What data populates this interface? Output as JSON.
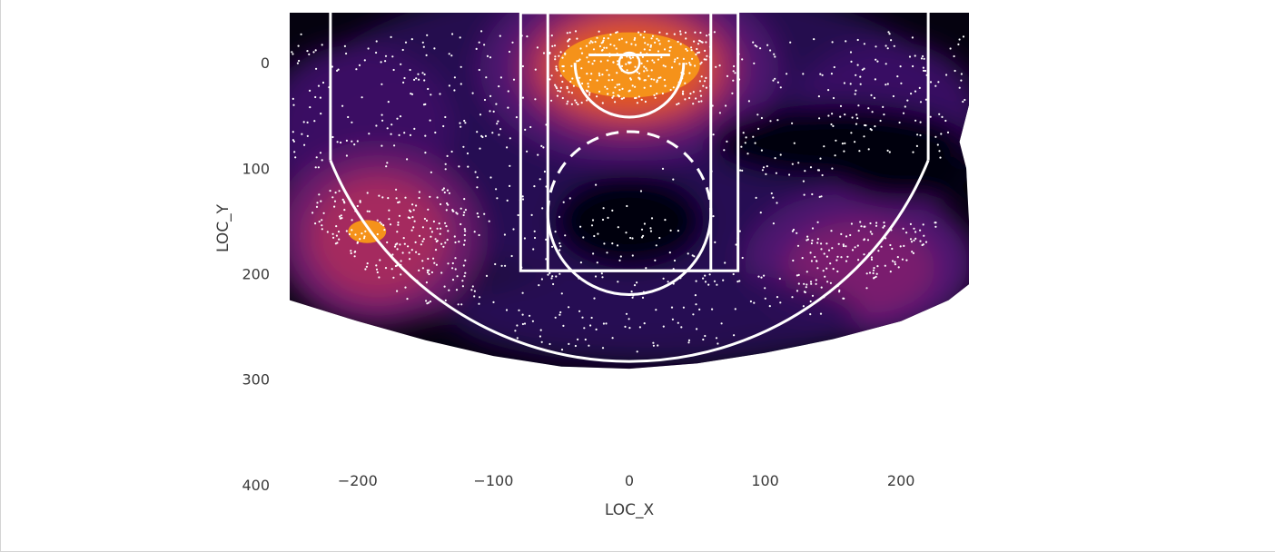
{
  "chart_data": {
    "type": "heatmap",
    "subtype": "kde-density-with-scatter-and-court-overlay",
    "xlabel": "LOC_X",
    "ylabel": "LOC_Y",
    "xlim": [
      -250,
      250
    ],
    "ylim": [
      422.5,
      -47.5
    ],
    "y_inverted": true,
    "xticks": [
      -200,
      -100,
      0,
      100,
      200
    ],
    "xtick_labels": [
      "−200",
      "−100",
      "0",
      "100",
      "200"
    ],
    "yticks": [
      0,
      100,
      200,
      300,
      400
    ],
    "ytick_labels": [
      "0",
      "100",
      "200",
      "300",
      "400"
    ],
    "grid": false,
    "colormap": "inferno",
    "colors": {
      "background": "#ffffff",
      "density_low": "#05020f",
      "density_mid": "#7a1e6e",
      "density_high": "#f5921a",
      "points": "#ffffff",
      "court_lines": "#ffffff"
    },
    "density_hotspots": [
      {
        "x": 0,
        "y": 0,
        "level": "high"
      },
      {
        "x": -190,
        "y": 160,
        "level": "high"
      },
      {
        "x": 170,
        "y": 190,
        "level": "medium"
      },
      {
        "x": -180,
        "y": 30,
        "level": "low"
      },
      {
        "x": 180,
        "y": 30,
        "level": "low"
      }
    ],
    "scatter_regions": [
      {
        "x": [
          -60,
          60
        ],
        "y": [
          -30,
          40
        ],
        "count": 320
      },
      {
        "x": [
          -240,
          -120
        ],
        "y": [
          120,
          230
        ],
        "count": 280
      },
      {
        "x": [
          120,
          230
        ],
        "y": [
          150,
          245
        ],
        "count": 230
      },
      {
        "x": [
          -250,
          -150
        ],
        "y": [
          -30,
          100
        ],
        "count": 110
      },
      {
        "x": [
          -150,
          -60
        ],
        "y": [
          -30,
          120
        ],
        "count": 90
      },
      {
        "x": [
          60,
          150
        ],
        "y": [
          -30,
          110
        ],
        "count": 80
      },
      {
        "x": [
          150,
          250
        ],
        "y": [
          -30,
          90
        ],
        "count": 120
      },
      {
        "x": [
          -120,
          120
        ],
        "y": [
          200,
          275
        ],
        "count": 130
      },
      {
        "x": [
          -80,
          80
        ],
        "y": [
          140,
          210
        ],
        "count": 50
      },
      {
        "x": [
          -150,
          150
        ],
        "y": [
          100,
          200
        ],
        "count": 90
      }
    ],
    "court": {
      "hoop": {
        "x": 0,
        "y": 0,
        "radius": 7.5
      },
      "backboard": {
        "x1": -30,
        "x2": 30,
        "y": -7.5
      },
      "outer_box": {
        "x": -80,
        "y": -47.5,
        "width": 160,
        "height": 190
      },
      "inner_box": {
        "x": -60,
        "y": -47.5,
        "width": 120,
        "height": 190
      },
      "free_throw_circle": {
        "x": 0,
        "y": 142.5,
        "radius": 60
      },
      "restricted_arc": {
        "x": 0,
        "y": 0,
        "radius": 40
      },
      "three_point_corner": {
        "x": 220,
        "y_top": -47.5,
        "y_bottom": 92.5
      },
      "three_point_arc": {
        "x": 0,
        "y": 0,
        "radius": 237.5
      }
    }
  }
}
